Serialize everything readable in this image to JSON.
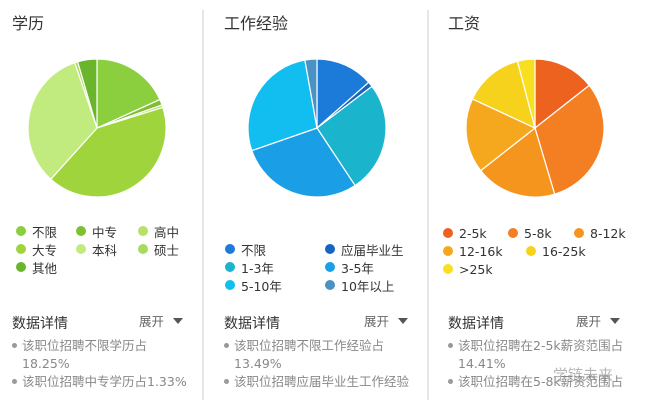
{
  "panels": [
    {
      "title": "学历",
      "expand_label": "展开",
      "detail_title": "数据详情",
      "details": [
        "该职位招聘不限学历占",
        "18.25%",
        "该职位招聘中专学历占1.33%"
      ],
      "legend": [
        {
          "label": "不限",
          "color": "#8ccf3e"
        },
        {
          "label": "中专",
          "color": "#7fbf35"
        },
        {
          "label": "高中",
          "color": "#b5e06a"
        },
        {
          "label": "大专",
          "color": "#a0d43c"
        },
        {
          "label": "本科",
          "color": "#c2eb7f"
        },
        {
          "label": "硕士",
          "color": "#a6dc5c"
        },
        {
          "label": "其他",
          "color": "#6bb52c"
        }
      ]
    },
    {
      "title": "工作经验",
      "expand_label": "展开",
      "detail_title": "数据详情",
      "details": [
        "该职位招聘不限工作经验占",
        "13.49%",
        "该职位招聘应届毕业生工作经验"
      ],
      "legend": [
        {
          "label": "不限",
          "color": "#1c7ad8"
        },
        {
          "label": "应届毕业生",
          "color": "#1566c0"
        },
        {
          "label": "1-3年",
          "color": "#1ab4cc"
        },
        {
          "label": "3-5年",
          "color": "#1a9fe6"
        },
        {
          "label": "5-10年",
          "color": "#12bdf0"
        },
        {
          "label": "10年以上",
          "color": "#4a92c4"
        }
      ]
    },
    {
      "title": "工资",
      "expand_label": "展开",
      "detail_title": "数据详情",
      "details": [
        "该职位招聘在2-5k薪资范围占",
        "14.41%",
        "该职位招聘在5-8k薪资范围占"
      ],
      "legend": [
        {
          "label": "2-5k",
          "color": "#ee6220"
        },
        {
          "label": "5-8k",
          "color": "#f47e22"
        },
        {
          "label": "8-12k",
          "color": "#f5951d"
        },
        {
          "label": "12-16k",
          "color": "#f5a81e"
        },
        {
          "label": "16-25k",
          "color": "#f7d21c"
        },
        {
          "label": ">25k",
          "color": "#f8e020"
        }
      ]
    }
  ],
  "watermark": "学链未来",
  "chart_data": [
    {
      "type": "pie",
      "title": "学历",
      "categories": [
        "不限",
        "中专",
        "高中",
        "大专",
        "本科",
        "硕士",
        "其他"
      ],
      "values": [
        18.25,
        1.33,
        0.6,
        41.5,
        33.1,
        0.7,
        4.52
      ],
      "colors": [
        "#8ccf3e",
        "#7fbf35",
        "#b5e06a",
        "#a0d43c",
        "#c2eb7f",
        "#a6dc5c",
        "#6bb52c"
      ],
      "legend_position": "bottom"
    },
    {
      "type": "pie",
      "title": "工作经验",
      "categories": [
        "不限",
        "应届毕业生",
        "1-3年",
        "3-5年",
        "5-10年",
        "10年以上"
      ],
      "values": [
        13.49,
        1.2,
        26.0,
        29.0,
        27.5,
        2.81
      ],
      "colors": [
        "#1c7ad8",
        "#1566c0",
        "#1ab4cc",
        "#1a9fe6",
        "#12bdf0",
        "#4a92c4"
      ],
      "legend_position": "bottom"
    },
    {
      "type": "pie",
      "title": "工资",
      "categories": [
        "2-5k",
        "5-8k",
        "8-12k",
        "12-16k",
        "16-25k",
        ">25k"
      ],
      "values": [
        14.41,
        31.0,
        19.0,
        17.5,
        14.0,
        4.09
      ],
      "colors": [
        "#ee6220",
        "#f47e22",
        "#f5951d",
        "#f5a81e",
        "#f7d21c",
        "#f8e020"
      ],
      "legend_position": "bottom"
    }
  ]
}
